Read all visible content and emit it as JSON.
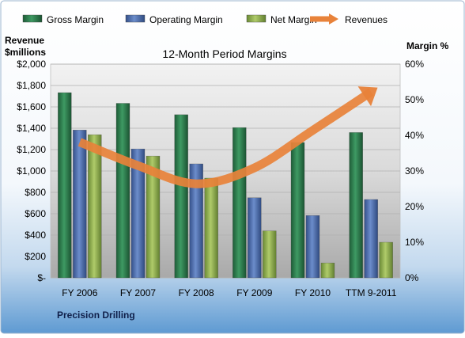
{
  "chart_data": {
    "type": "bar",
    "title": "12-Month Period Margins",
    "company": "Precision Drilling",
    "left_axis_title": [
      "Revenue",
      "$millions"
    ],
    "right_axis_title": "Margin %",
    "categories": [
      "FY 2006",
      "FY 2007",
      "FY 2008",
      "FY 2009",
      "FY 2010",
      "TTM 9-2011"
    ],
    "left_axis": {
      "min": 0,
      "max": 2000,
      "step": 200,
      "tick_labels": [
        "$-",
        "$200",
        "$400",
        "$600",
        "$800",
        "$1,000",
        "$1,200",
        "$1,400",
        "$1,600",
        "$1,800",
        "$2,000"
      ]
    },
    "right_axis": {
      "min": 0,
      "max": 60,
      "step": 10,
      "tick_labels": [
        "0%",
        "10%",
        "20%",
        "30%",
        "40%",
        "50%",
        "60%"
      ]
    },
    "series": [
      {
        "name": "Gross Margin",
        "axis": "right",
        "kind": "bar",
        "color": "#2E7D4F",
        "values": [
          52,
          49,
          45.8,
          42.2,
          38,
          40.8
        ]
      },
      {
        "name": "Operating Margin",
        "axis": "right",
        "kind": "bar",
        "color": "#4F6FAE",
        "values": [
          41.5,
          36.2,
          32,
          22.5,
          17.5,
          22
        ]
      },
      {
        "name": "Net Margin",
        "axis": "right",
        "kind": "bar",
        "color": "#8FAE4A",
        "values": [
          40.2,
          34.2,
          28,
          13.2,
          4.2,
          10
        ]
      },
      {
        "name": "Revenues",
        "axis": "left",
        "kind": "line",
        "color": "#E8823A",
        "values": [
          1270,
          1050,
          880,
          1030,
          1380,
          1740
        ]
      }
    ],
    "grid": true,
    "legend": "top"
  }
}
